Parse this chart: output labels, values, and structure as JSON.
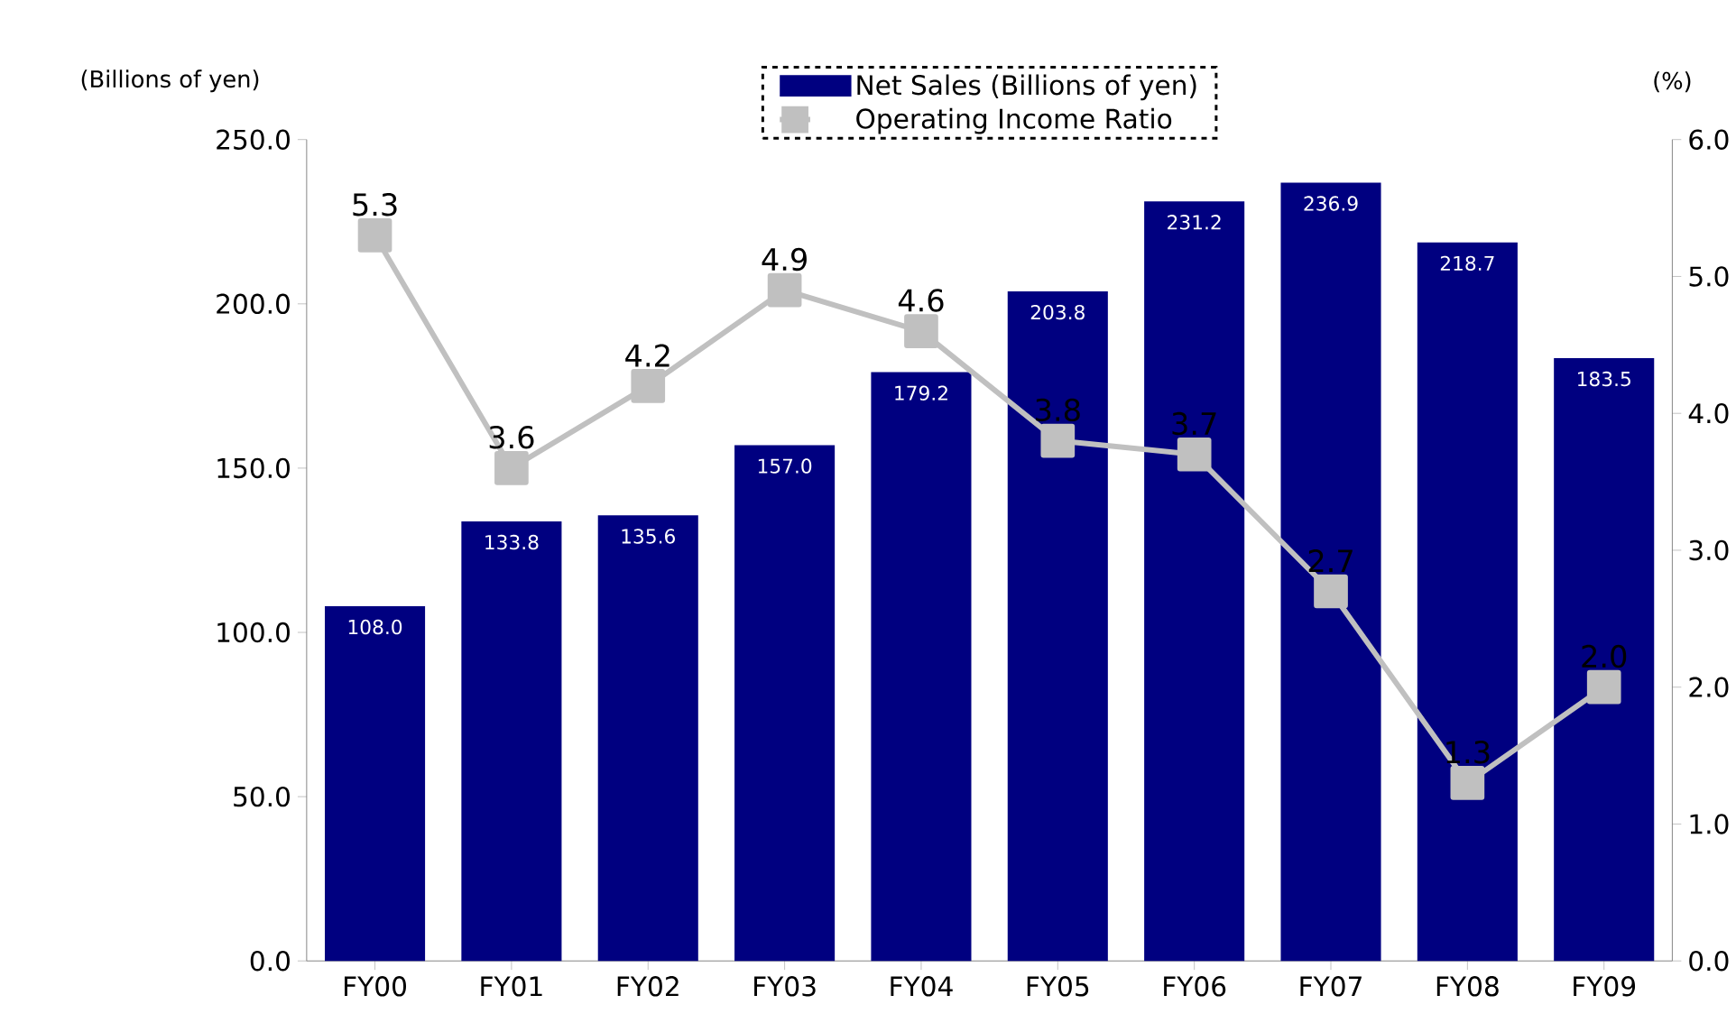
{
  "chart_data": {
    "type": "bar",
    "ylabel": "(Billions of yen)",
    "y2label": "(%)",
    "categories": [
      "FY00",
      "FY01",
      "FY02",
      "FY03",
      "FY04",
      "FY05",
      "FY06",
      "FY07",
      "FY08",
      "FY09"
    ],
    "series": [
      {
        "name": "Net Sales (Billions of yen)",
        "color": "#000080",
        "values": [
          108.0,
          133.8,
          135.6,
          157.0,
          179.2,
          203.8,
          231.2,
          236.9,
          218.7,
          183.5
        ],
        "value_labels": [
          "108.0",
          "133.8",
          "135.6",
          "157.0",
          "179.2",
          "203.8",
          "231.2",
          "236.9",
          "218.7",
          "183.5"
        ]
      },
      {
        "name": "Operating Income Ratio",
        "type": "line",
        "axis": "y2",
        "color": "#c0c0c0",
        "marker": "square",
        "values": [
          5.3,
          3.6,
          4.2,
          4.9,
          4.6,
          3.8,
          3.7,
          2.7,
          1.3,
          2.0
        ],
        "value_labels": [
          "5.3",
          "3.6",
          "4.2",
          "4.9",
          "4.6",
          "3.8",
          "3.7",
          "2.7",
          "1.3",
          "2.0"
        ]
      }
    ],
    "ylim": [
      0,
      250
    ],
    "yticks": [
      {
        "value": 0,
        "label": "0.0"
      },
      {
        "value": 50,
        "label": "50.0"
      },
      {
        "value": 100,
        "label": "100.0"
      },
      {
        "value": 150,
        "label": "150.0"
      },
      {
        "value": 200,
        "label": "200.0"
      },
      {
        "value": 250,
        "label": "250.0"
      }
    ],
    "y2lim": [
      0,
      6
    ],
    "y2ticks": [
      {
        "value": 0,
        "label": "0.0"
      },
      {
        "value": 1,
        "label": "1.0"
      },
      {
        "value": 2,
        "label": "2.0"
      },
      {
        "value": 3,
        "label": "3.0"
      },
      {
        "value": 4,
        "label": "4.0"
      },
      {
        "value": 5,
        "label": "5.0"
      },
      {
        "value": 6,
        "label": "6.0"
      }
    ],
    "legend": "top",
    "grid": false
  }
}
